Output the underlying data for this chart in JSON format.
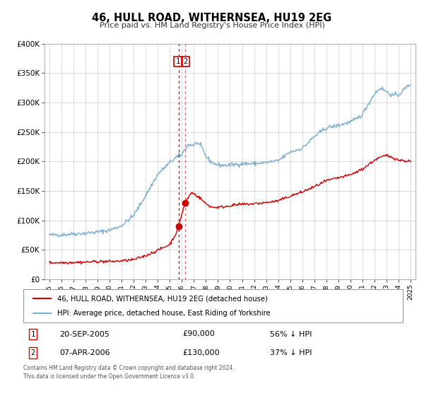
{
  "title": "46, HULL ROAD, WITHERNSEA, HU19 2EG",
  "subtitle": "Price paid vs. HM Land Registry's House Price Index (HPI)",
  "legend_line1": "46, HULL ROAD, WITHERNSEA, HU19 2EG (detached house)",
  "legend_line2": "HPI: Average price, detached house, East Riding of Yorkshire",
  "transaction1_date": "20-SEP-2005",
  "transaction1_price": "£90,000",
  "transaction1_pct": "56% ↓ HPI",
  "transaction2_date": "07-APR-2006",
  "transaction2_price": "£130,000",
  "transaction2_pct": "37% ↓ HPI",
  "footer": "Contains HM Land Registry data © Crown copyright and database right 2024.\nThis data is licensed under the Open Government Licence v3.0.",
  "red_color": "#cc0000",
  "blue_color": "#7aadcf",
  "dashed_line_color": "#cc0000",
  "transaction1_x": 2005.72,
  "transaction2_x": 2006.27,
  "transaction1_y": 90000,
  "transaction2_y": 130000,
  "ylim": [
    0,
    400000
  ],
  "xlim_start": 1994.6,
  "xlim_end": 2025.4,
  "yticks": [
    0,
    50000,
    100000,
    150000,
    200000,
    250000,
    300000,
    350000,
    400000
  ],
  "ytick_labels": [
    "£0",
    "£50K",
    "£100K",
    "£150K",
    "£200K",
    "£250K",
    "£300K",
    "£350K",
    "£400K"
  ],
  "xtick_years": [
    1995,
    1996,
    1997,
    1998,
    1999,
    2000,
    2001,
    2002,
    2003,
    2004,
    2005,
    2006,
    2007,
    2008,
    2009,
    2010,
    2011,
    2012,
    2013,
    2014,
    2015,
    2016,
    2017,
    2018,
    2019,
    2020,
    2021,
    2022,
    2023,
    2024,
    2025
  ]
}
